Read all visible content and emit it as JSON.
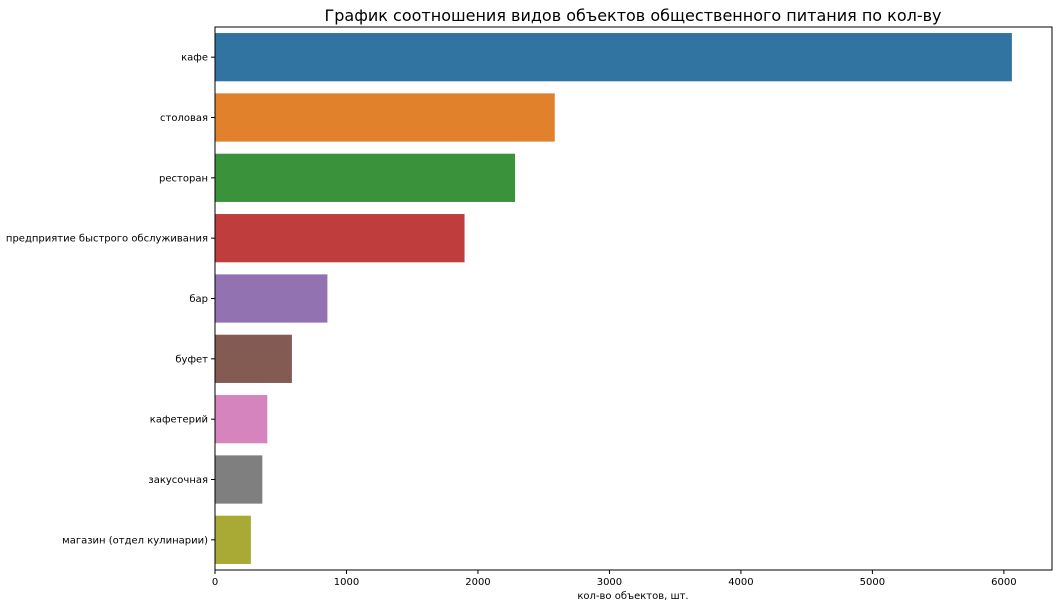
{
  "chart_data": {
    "type": "bar",
    "orientation": "horizontal",
    "title": "График соотношения видов объектов общественного питания по кол-ву",
    "xlabel": "кол-во объектов, шт.",
    "ylabel": "",
    "xlim": [
      0,
      6366
    ],
    "xticks": [
      0,
      1000,
      2000,
      3000,
      4000,
      5000,
      6000
    ],
    "grid": false,
    "categories": [
      "кафе",
      "столовая",
      "ресторан",
      "предприятие быстрого обслуживания",
      "бар",
      "буфет",
      "кафетерий",
      "закусочная",
      "магазин (отдел кулинарии)"
    ],
    "values": [
      6061,
      2584,
      2282,
      1898,
      855,
      585,
      398,
      360,
      273
    ],
    "colors": [
      "#3274a1",
      "#e1812c",
      "#3a923a",
      "#c03d3e",
      "#9372b2",
      "#845b53",
      "#d684bd",
      "#7f7f7f",
      "#a9aa35"
    ]
  }
}
